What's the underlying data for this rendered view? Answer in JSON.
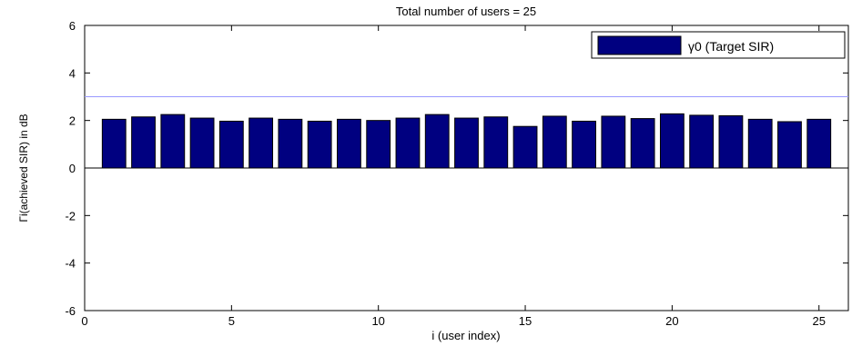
{
  "chart_data": {
    "type": "bar",
    "title": "Total number of users = 25",
    "xlabel": "i (user index)",
    "ylabel": "Γi(achieved SIR) in dB",
    "xlim": [
      0,
      26
    ],
    "ylim": [
      -6,
      6
    ],
    "xticks": [
      0,
      5,
      10,
      15,
      20,
      25
    ],
    "yticks": [
      -6,
      -4,
      -2,
      0,
      2,
      4,
      6
    ],
    "x": [
      1,
      2,
      3,
      4,
      5,
      6,
      7,
      8,
      9,
      10,
      11,
      12,
      13,
      14,
      15,
      16,
      17,
      18,
      19,
      20,
      21,
      22,
      23,
      24,
      25
    ],
    "values": [
      2.05,
      2.15,
      2.25,
      2.1,
      1.97,
      2.1,
      2.05,
      1.97,
      2.05,
      2.0,
      2.1,
      2.25,
      2.1,
      2.15,
      1.75,
      2.18,
      1.97,
      2.18,
      2.08,
      2.28,
      2.22,
      2.2,
      2.05,
      1.95,
      2.05
    ],
    "target_line": 3,
    "legend": {
      "position": "top-right",
      "label": "γ0 (Target SIR)"
    },
    "grid": false,
    "colors": {
      "bar": "#000080",
      "target_line": "#9999ff",
      "axis": "#000000"
    }
  }
}
